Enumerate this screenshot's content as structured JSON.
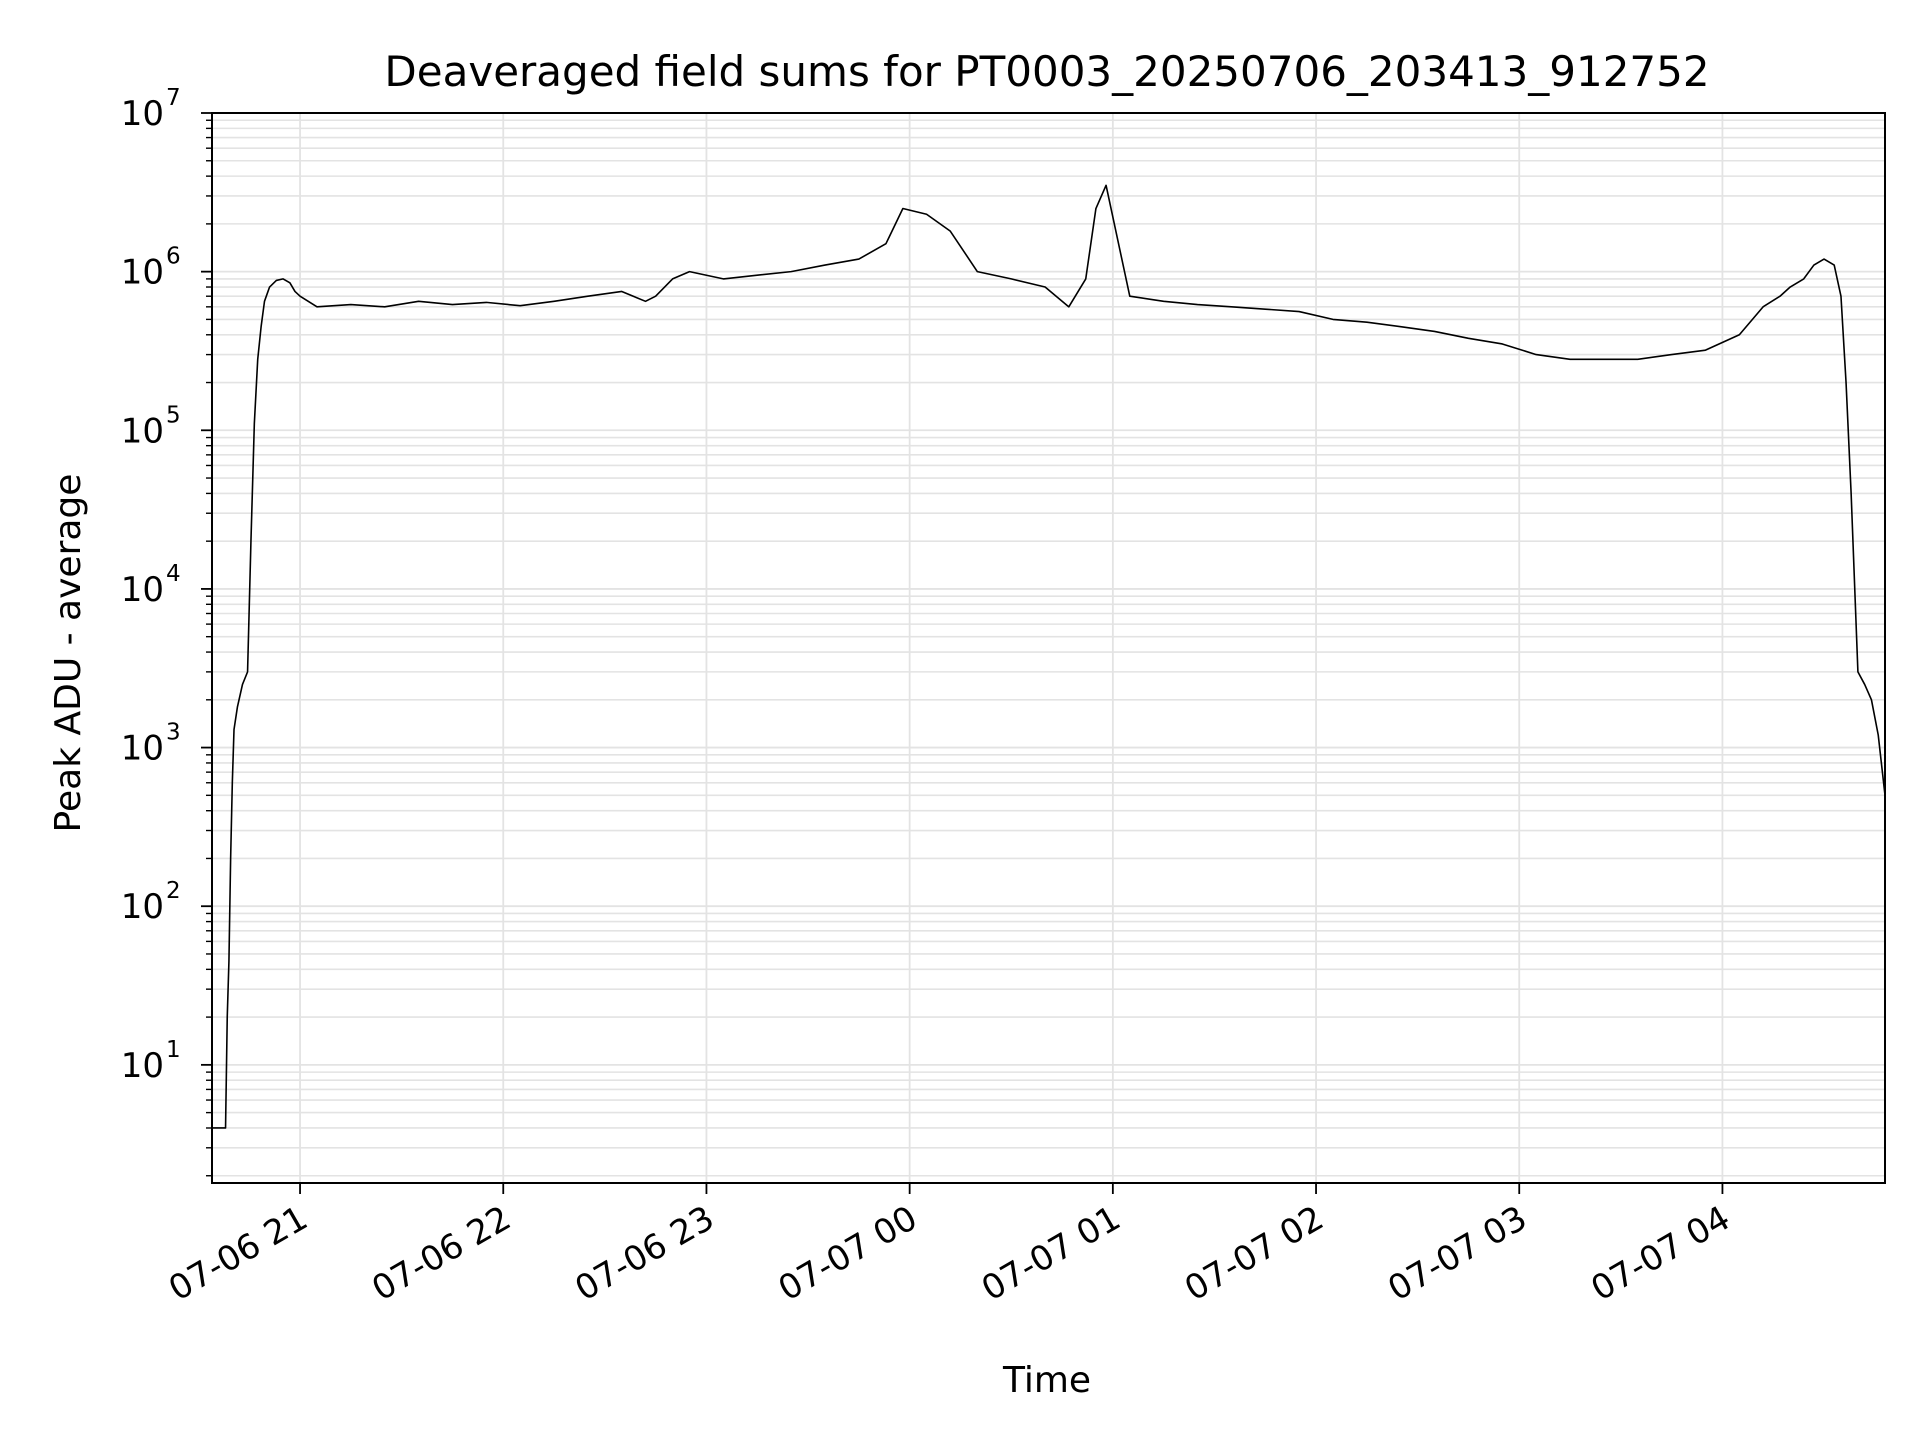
{
  "chart_data": {
    "type": "line",
    "title": "Deaveraged field sums for PT0003_20250706_203413_912752",
    "xlabel": "Time",
    "ylabel": "Peak ADU - average",
    "x_scale": "time",
    "y_scale": "log",
    "xlim": [
      "2025-07-06T20:34:00",
      "2025-07-07T04:48:00"
    ],
    "ylim": [
      1.8,
      10000000
    ],
    "grid": true,
    "grid_minor": true,
    "line_color": "#000000",
    "grid_color": "#e3e3e3",
    "x_ticks": [
      {
        "t": "2025-07-06T21:00:00",
        "label": "07-06 21"
      },
      {
        "t": "2025-07-06T22:00:00",
        "label": "07-06 22"
      },
      {
        "t": "2025-07-06T23:00:00",
        "label": "07-06 23"
      },
      {
        "t": "2025-07-07T00:00:00",
        "label": "07-07 00"
      },
      {
        "t": "2025-07-07T01:00:00",
        "label": "07-07 01"
      },
      {
        "t": "2025-07-07T02:00:00",
        "label": "07-07 02"
      },
      {
        "t": "2025-07-07T03:00:00",
        "label": "07-07 03"
      },
      {
        "t": "2025-07-07T04:00:00",
        "label": "07-07 04"
      }
    ],
    "y_ticks": [
      {
        "value": 10,
        "base": "10",
        "exp": "1"
      },
      {
        "value": 100,
        "base": "10",
        "exp": "2"
      },
      {
        "value": 1000,
        "base": "10",
        "exp": "3"
      },
      {
        "value": 10000,
        "base": "10",
        "exp": "4"
      },
      {
        "value": 100000,
        "base": "10",
        "exp": "5"
      },
      {
        "value": 1000000,
        "base": "10",
        "exp": "6"
      },
      {
        "value": 10000000,
        "base": "10",
        "exp": "7"
      }
    ],
    "series": [
      {
        "color": "#000000",
        "x": [
          "2025-07-06T20:34:00",
          "2025-07-06T20:36:00",
          "2025-07-06T20:38:00",
          "2025-07-06T20:38:30",
          "2025-07-06T20:39:00",
          "2025-07-06T20:39:30",
          "2025-07-06T20:40:00",
          "2025-07-06T20:40:30",
          "2025-07-06T20:41:30",
          "2025-07-06T20:43:00",
          "2025-07-06T20:44:30",
          "2025-07-06T20:45:30",
          "2025-07-06T20:46:30",
          "2025-07-06T20:47:30",
          "2025-07-06T20:48:30",
          "2025-07-06T20:49:30",
          "2025-07-06T20:51:00",
          "2025-07-06T20:53:00",
          "2025-07-06T20:55:00",
          "2025-07-06T20:57:00",
          "2025-07-06T20:58:30",
          "2025-07-06T21:00:00",
          "2025-07-06T21:05:00",
          "2025-07-06T21:15:00",
          "2025-07-06T21:25:00",
          "2025-07-06T21:35:00",
          "2025-07-06T21:45:00",
          "2025-07-06T21:55:00",
          "2025-07-06T22:05:00",
          "2025-07-06T22:15:00",
          "2025-07-06T22:25:00",
          "2025-07-06T22:35:00",
          "2025-07-06T22:42:00",
          "2025-07-06T22:45:00",
          "2025-07-06T22:50:00",
          "2025-07-06T22:55:00",
          "2025-07-06T23:05:00",
          "2025-07-06T23:15:00",
          "2025-07-06T23:25:00",
          "2025-07-06T23:35:00",
          "2025-07-06T23:45:00",
          "2025-07-06T23:53:00",
          "2025-07-06T23:58:00",
          "2025-07-07T00:05:00",
          "2025-07-07T00:12:00",
          "2025-07-07T00:20:00",
          "2025-07-07T00:30:00",
          "2025-07-07T00:40:00",
          "2025-07-07T00:47:00",
          "2025-07-07T00:52:00",
          "2025-07-07T00:55:00",
          "2025-07-07T00:58:00",
          "2025-07-07T01:05:00",
          "2025-07-07T01:15:00",
          "2025-07-07T01:25:00",
          "2025-07-07T01:35:00",
          "2025-07-07T01:45:00",
          "2025-07-07T01:55:00",
          "2025-07-07T02:05:00",
          "2025-07-07T02:15:00",
          "2025-07-07T02:25:00",
          "2025-07-07T02:35:00",
          "2025-07-07T02:45:00",
          "2025-07-07T02:55:00",
          "2025-07-07T03:05:00",
          "2025-07-07T03:15:00",
          "2025-07-07T03:25:00",
          "2025-07-07T03:35:00",
          "2025-07-07T03:45:00",
          "2025-07-07T03:55:00",
          "2025-07-07T04:05:00",
          "2025-07-07T04:12:00",
          "2025-07-07T04:17:00",
          "2025-07-07T04:20:00",
          "2025-07-07T04:24:00",
          "2025-07-07T04:27:00",
          "2025-07-07T04:30:00",
          "2025-07-07T04:33:00",
          "2025-07-07T04:35:00",
          "2025-07-07T04:36:30",
          "2025-07-07T04:38:00",
          "2025-07-07T04:40:00",
          "2025-07-07T04:42:00",
          "2025-07-07T04:44:00",
          "2025-07-07T04:46:00",
          "2025-07-07T04:48:00"
        ],
        "y": [
          4,
          4,
          4,
          20,
          45,
          200,
          600,
          1300,
          1800,
          2500,
          3000,
          20000,
          110000,
          280000,
          450000,
          650000,
          800000,
          880000,
          900000,
          850000,
          750000,
          700000,
          600000,
          620000,
          600000,
          650000,
          620000,
          640000,
          610000,
          650000,
          700000,
          750000,
          650000,
          700000,
          900000,
          1000000,
          900000,
          950000,
          1000000,
          1100000,
          1200000,
          1500000,
          2500000,
          2300000,
          1800000,
          1000000,
          900000,
          800000,
          600000,
          900000,
          2500000,
          3500000,
          700000,
          650000,
          620000,
          600000,
          580000,
          560000,
          500000,
          480000,
          450000,
          420000,
          380000,
          350000,
          300000,
          280000,
          280000,
          280000,
          300000,
          320000,
          400000,
          600000,
          700000,
          800000,
          900000,
          1100000,
          1200000,
          1100000,
          700000,
          200000,
          40000,
          3000,
          2500,
          2000,
          1200,
          500
        ]
      }
    ]
  }
}
